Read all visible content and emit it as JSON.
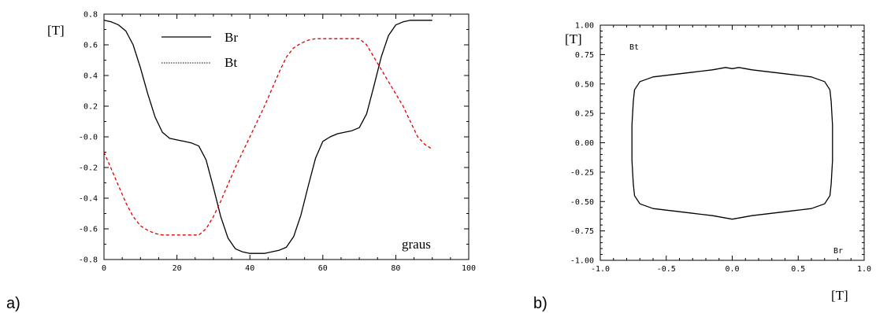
{
  "chart_data": [
    {
      "type": "line",
      "panel_label": "a)",
      "ylabel": "[T]",
      "annotation": "graus",
      "xlim": [
        0,
        100
      ],
      "ylim": [
        -0.8,
        0.8
      ],
      "x_ticks": [
        "0",
        "20",
        "40",
        "60",
        "80",
        "100"
      ],
      "y_ticks": [
        "0.8",
        "0.6",
        "0.4",
        "0.2",
        "-0.0",
        "-0.2",
        "-0.4",
        "-0.6",
        "-0.8"
      ],
      "legend": [
        "Br",
        "Bt"
      ],
      "series": [
        {
          "name": "Br",
          "color": "#000000",
          "style": "solid",
          "x": [
            0,
            2,
            4,
            6,
            8,
            10,
            12,
            14,
            16,
            18,
            20,
            22,
            24,
            26,
            28,
            30,
            32,
            34,
            36,
            38,
            40,
            42,
            44,
            46,
            48,
            50,
            52,
            54,
            56,
            58,
            60,
            62,
            64,
            66,
            68,
            70,
            72,
            74,
            76,
            78,
            80,
            82,
            84,
            86,
            88,
            90
          ],
          "y": [
            0.76,
            0.75,
            0.73,
            0.69,
            0.6,
            0.45,
            0.28,
            0.13,
            0.03,
            -0.01,
            -0.02,
            -0.03,
            -0.04,
            -0.06,
            -0.15,
            -0.33,
            -0.52,
            -0.66,
            -0.73,
            -0.75,
            -0.76,
            -0.76,
            -0.76,
            -0.75,
            -0.74,
            -0.72,
            -0.65,
            -0.51,
            -0.32,
            -0.14,
            -0.03,
            0.0,
            0.02,
            0.03,
            0.04,
            0.06,
            0.15,
            0.33,
            0.52,
            0.66,
            0.73,
            0.75,
            0.76,
            0.76,
            0.76,
            0.76
          ]
        },
        {
          "name": "Bt",
          "color": "#e00000",
          "style": "dashed",
          "x": [
            0,
            2,
            4,
            6,
            8,
            10,
            12,
            14,
            16,
            18,
            20,
            22,
            24,
            26,
            28,
            30,
            32,
            34,
            36,
            38,
            40,
            42,
            44,
            46,
            48,
            50,
            52,
            54,
            56,
            58,
            60,
            62,
            64,
            66,
            68,
            70,
            72,
            74,
            76,
            78,
            80,
            82,
            84,
            86,
            88,
            90
          ],
          "y": [
            -0.1,
            -0.21,
            -0.32,
            -0.43,
            -0.52,
            -0.58,
            -0.61,
            -0.63,
            -0.64,
            -0.64,
            -0.64,
            -0.64,
            -0.64,
            -0.64,
            -0.6,
            -0.52,
            -0.42,
            -0.31,
            -0.2,
            -0.1,
            0.0,
            0.1,
            0.2,
            0.31,
            0.42,
            0.52,
            0.58,
            0.61,
            0.63,
            0.64,
            0.64,
            0.64,
            0.64,
            0.64,
            0.64,
            0.64,
            0.6,
            0.52,
            0.44,
            0.36,
            0.28,
            0.2,
            0.1,
            0.0,
            -0.05,
            -0.08
          ]
        }
      ]
    },
    {
      "type": "line",
      "panel_label": "b)",
      "ylabel": "[T]",
      "xlabel": "[T]",
      "x_series_label": "Br",
      "y_series_label": "Bt",
      "xlim": [
        -1.0,
        1.0
      ],
      "ylim": [
        -1.0,
        1.0
      ],
      "x_ticks": [
        "-1.0",
        "-0.5",
        "0.0",
        "0.5",
        "1.0"
      ],
      "y_ticks": [
        "1.00",
        "0.75",
        "0.50",
        "0.25",
        "0.00",
        "-0.25",
        "-0.50",
        "-0.75",
        "-1.00"
      ],
      "series": [
        {
          "color": "#000000",
          "style": "solid",
          "x": [
            0.76,
            0.76,
            0.75,
            0.74,
            0.7,
            0.6,
            0.45,
            0.3,
            0.15,
            0.05,
            0.0,
            -0.05,
            -0.15,
            -0.3,
            -0.45,
            -0.6,
            -0.7,
            -0.74,
            -0.75,
            -0.76,
            -0.76,
            -0.76,
            -0.75,
            -0.74,
            -0.7,
            -0.6,
            -0.45,
            -0.3,
            -0.15,
            -0.05,
            0.0,
            0.05,
            0.15,
            0.3,
            0.45,
            0.6,
            0.7,
            0.74,
            0.75,
            0.76,
            0.76
          ],
          "y": [
            -0.07,
            0.15,
            0.35,
            0.45,
            0.52,
            0.56,
            0.58,
            0.6,
            0.62,
            0.64,
            0.63,
            0.64,
            0.62,
            0.6,
            0.58,
            0.56,
            0.52,
            0.45,
            0.35,
            0.15,
            0.0,
            -0.15,
            -0.35,
            -0.45,
            -0.52,
            -0.56,
            -0.58,
            -0.6,
            -0.62,
            -0.64,
            -0.65,
            -0.64,
            -0.62,
            -0.6,
            -0.58,
            -0.56,
            -0.52,
            -0.45,
            -0.35,
            -0.15,
            -0.07
          ]
        }
      ]
    }
  ]
}
